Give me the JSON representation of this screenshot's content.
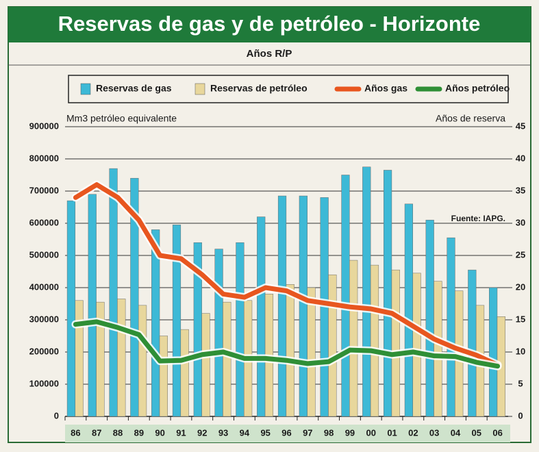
{
  "chart_data": {
    "type": "bar_line",
    "title": "Reservas de gas y de petróleo - Horizonte",
    "subtitle": "Años R/P",
    "y_axis_label": "Mm3 petróleo equivalente",
    "y2_axis_label": "Años de reserva",
    "annotation": "Fuente: IAPG.",
    "categories": [
      "86",
      "87",
      "88",
      "89",
      "90",
      "91",
      "92",
      "93",
      "94",
      "95",
      "96",
      "97",
      "98",
      "99",
      "00",
      "01",
      "02",
      "03",
      "04",
      "05",
      "06"
    ],
    "series": [
      {
        "name": "Reservas de gas",
        "kind": "bar",
        "color": "#3db9d6",
        "values": [
          670000,
          690000,
          770000,
          740000,
          580000,
          595000,
          540000,
          520000,
          540000,
          620000,
          685000,
          685000,
          680000,
          750000,
          775000,
          765000,
          660000,
          610000,
          555000,
          455000,
          400000
        ]
      },
      {
        "name": "Reservas de petróleo",
        "kind": "bar",
        "color": "#e8d79c",
        "values": [
          360000,
          355000,
          365000,
          345000,
          250000,
          270000,
          320000,
          355000,
          360000,
          380000,
          410000,
          400000,
          440000,
          485000,
          470000,
          455000,
          445000,
          420000,
          390000,
          345000,
          310000
        ]
      },
      {
        "name": "Años gas",
        "kind": "line",
        "axis": "y2",
        "color": "#e8561f",
        "values": [
          34,
          36,
          34,
          30.5,
          25,
          24.5,
          22,
          19,
          18.5,
          20,
          19.5,
          18,
          17.5,
          17,
          16.7,
          16,
          14,
          12,
          10.6,
          9.5,
          8
        ]
      },
      {
        "name": "Años petróleo",
        "kind": "line",
        "axis": "y2",
        "color": "#2f8f36",
        "values": [
          14.3,
          14.7,
          13.8,
          12.7,
          8.6,
          8.7,
          9.6,
          10,
          9,
          9,
          8.7,
          8.2,
          8.5,
          10.3,
          10.2,
          9.6,
          10,
          9.4,
          9.3,
          8.4,
          7.8
        ]
      }
    ],
    "ylim": [
      0,
      900000
    ],
    "yticks": [
      0,
      100000,
      200000,
      300000,
      400000,
      500000,
      600000,
      700000,
      800000,
      900000
    ],
    "y2lim": [
      0,
      45
    ],
    "y2ticks": [
      0,
      5,
      10,
      15,
      20,
      25,
      30,
      35,
      40,
      45
    ],
    "grid": true
  }
}
